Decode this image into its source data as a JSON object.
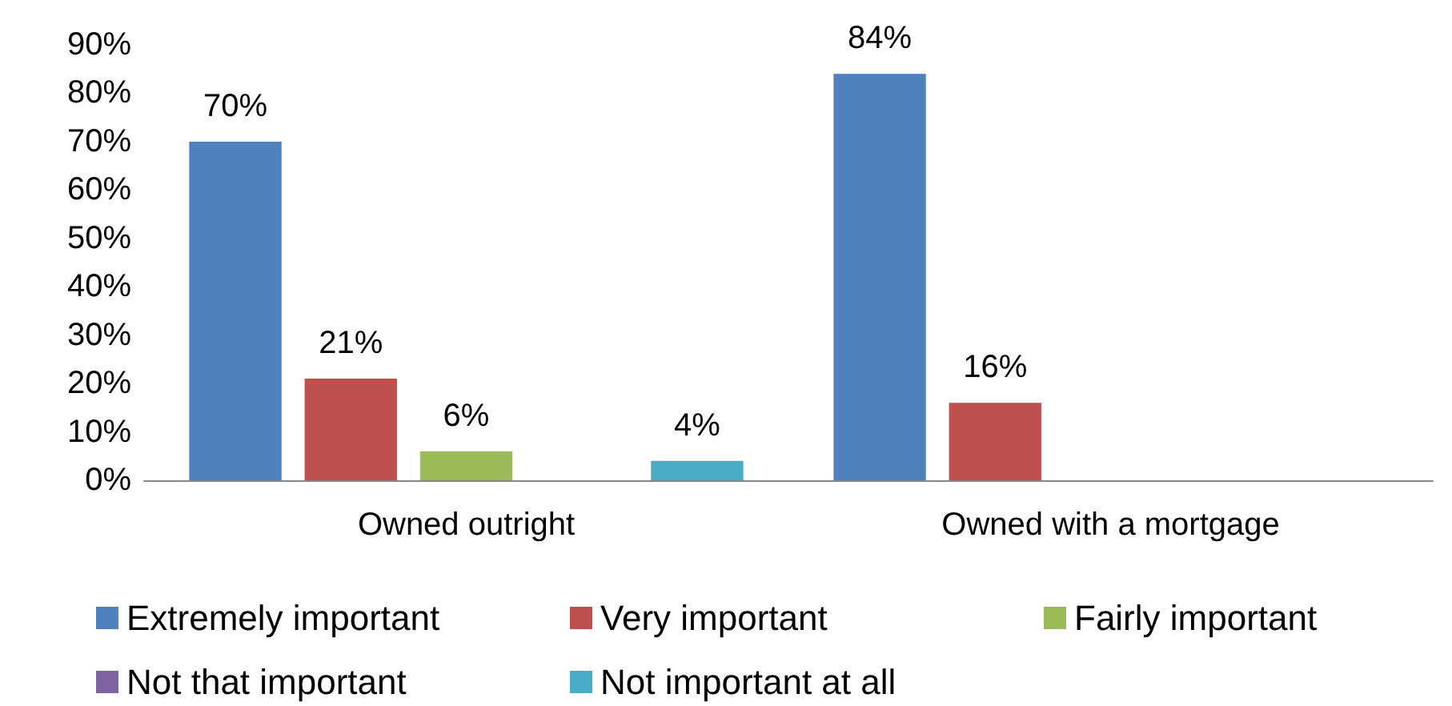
{
  "chart_data": {
    "type": "bar",
    "categories": [
      "Owned outright",
      "Owned with a mortgage"
    ],
    "series": [
      {
        "name": "Extremely important",
        "color": "#4f81bd",
        "values": [
          70,
          84
        ],
        "value_labels": [
          "70%",
          "84%"
        ]
      },
      {
        "name": "Very important",
        "color": "#c0504d",
        "values": [
          21,
          16
        ],
        "value_labels": [
          "21%",
          "16%"
        ]
      },
      {
        "name": "Fairly important",
        "color": "#9bbb59",
        "values": [
          6,
          null
        ],
        "value_labels": [
          "6%",
          null
        ]
      },
      {
        "name": "Not that important",
        "color": "#8064a2",
        "values": [
          null,
          null
        ],
        "value_labels": [
          null,
          null
        ]
      },
      {
        "name": "Not important at all",
        "color": "#4bacc6",
        "values": [
          4,
          null
        ],
        "value_labels": [
          "4%",
          null
        ]
      }
    ],
    "ylim": [
      0,
      90
    ],
    "yticks": [
      {
        "value": 0,
        "label": "0%"
      },
      {
        "value": 10,
        "label": "10%"
      },
      {
        "value": 20,
        "label": "20%"
      },
      {
        "value": 30,
        "label": "30%"
      },
      {
        "value": 40,
        "label": "40%"
      },
      {
        "value": 50,
        "label": "50%"
      },
      {
        "value": 60,
        "label": "60%"
      },
      {
        "value": 70,
        "label": "70%"
      },
      {
        "value": 80,
        "label": "80%"
      },
      {
        "value": 90,
        "label": "90%"
      }
    ],
    "grid": false,
    "legend": "bottom"
  }
}
